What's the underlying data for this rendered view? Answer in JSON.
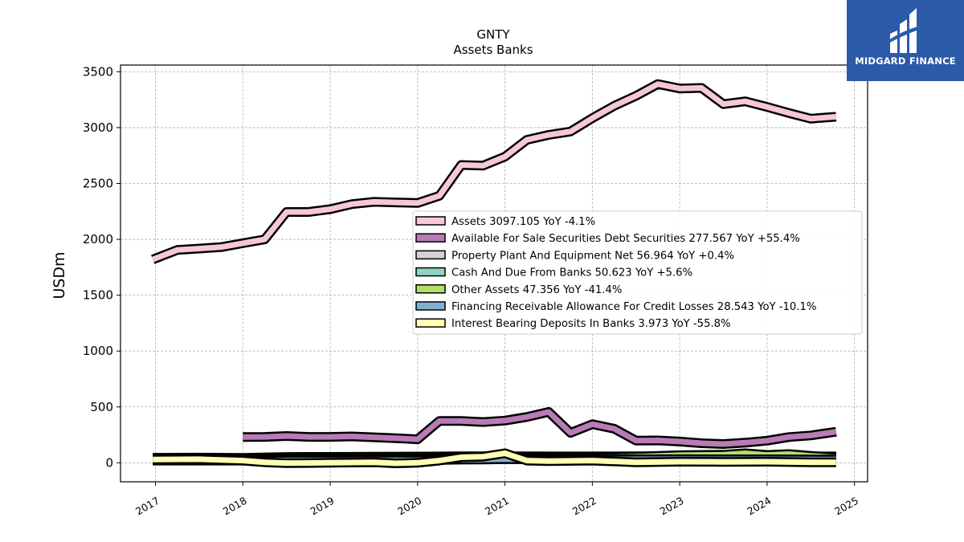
{
  "brand": {
    "name": "MIDGARD FINANCE",
    "bg_color": "#2b5aa8"
  },
  "chart_data": {
    "type": "area",
    "title": "GNTY",
    "subtitle": "Assets Banks",
    "ylabel": "USDm",
    "xlabel": "",
    "ylim": [
      -170,
      3560
    ],
    "xlim": [
      2016.6,
      2025.15
    ],
    "x_ticks": [
      2017,
      2018,
      2019,
      2020,
      2021,
      2022,
      2023,
      2024,
      2025
    ],
    "y_ticks": [
      0,
      500,
      1000,
      1500,
      2000,
      2500,
      3000,
      3500
    ],
    "grid": true,
    "legend_position": "center-right",
    "series": [
      {
        "name": "Assets",
        "legend": "Assets  3097.105 YoY -4.1%",
        "color": "#f6c6dc",
        "points": [
          [
            2016.97,
            1820
          ],
          [
            2017.25,
            1905
          ],
          [
            2017.75,
            1930
          ],
          [
            2018.0,
            1965
          ],
          [
            2018.25,
            2000
          ],
          [
            2018.5,
            2245
          ],
          [
            2018.75,
            2245
          ],
          [
            2019.0,
            2270
          ],
          [
            2019.25,
            2315
          ],
          [
            2019.5,
            2335
          ],
          [
            2019.75,
            2330
          ],
          [
            2020.0,
            2325
          ],
          [
            2020.25,
            2390
          ],
          [
            2020.5,
            2665
          ],
          [
            2020.75,
            2660
          ],
          [
            2021.0,
            2740
          ],
          [
            2021.25,
            2890
          ],
          [
            2021.5,
            2935
          ],
          [
            2021.75,
            2965
          ],
          [
            2022.0,
            3085
          ],
          [
            2022.25,
            3195
          ],
          [
            2022.5,
            3285
          ],
          [
            2022.75,
            3390
          ],
          [
            2023.0,
            3350
          ],
          [
            2023.25,
            3355
          ],
          [
            2023.5,
            3210
          ],
          [
            2023.75,
            3235
          ],
          [
            2024.0,
            3185
          ],
          [
            2024.25,
            3130
          ],
          [
            2024.5,
            3080
          ],
          [
            2024.79,
            3097
          ]
        ]
      },
      {
        "name": "Available For Sale Securities Debt Securities",
        "legend": "Available For Sale Securities Debt Securities  277.567 YoY +55.4%",
        "color": "#b97bb5",
        "points": [
          [
            2018.0,
            230
          ],
          [
            2018.25,
            232
          ],
          [
            2018.5,
            240
          ],
          [
            2018.75,
            232
          ],
          [
            2019.0,
            232
          ],
          [
            2019.25,
            236
          ],
          [
            2019.5,
            228
          ],
          [
            2019.75,
            220
          ],
          [
            2020.0,
            210
          ],
          [
            2020.25,
            375
          ],
          [
            2020.5,
            375
          ],
          [
            2020.75,
            365
          ],
          [
            2021.0,
            378
          ],
          [
            2021.25,
            410
          ],
          [
            2021.5,
            455
          ],
          [
            2021.75,
            268
          ],
          [
            2022.0,
            345
          ],
          [
            2022.25,
            305
          ],
          [
            2022.5,
            198
          ],
          [
            2022.75,
            200
          ],
          [
            2023.0,
            190
          ],
          [
            2023.25,
            175
          ],
          [
            2023.5,
            168
          ],
          [
            2023.75,
            180
          ],
          [
            2024.0,
            198
          ],
          [
            2024.25,
            230
          ],
          [
            2024.5,
            245
          ],
          [
            2024.79,
            278
          ]
        ]
      },
      {
        "name": "Property Plant And Equipment Net",
        "legend": "Property Plant And Equipment Net  56.964 YoY +0.4%",
        "color": "#d3d3d3",
        "points": [
          [
            2016.97,
            45
          ],
          [
            2017.5,
            46
          ],
          [
            2018.0,
            44
          ],
          [
            2018.5,
            52
          ],
          [
            2019.0,
            53
          ],
          [
            2019.5,
            54
          ],
          [
            2020.0,
            56
          ],
          [
            2020.5,
            58
          ],
          [
            2021.0,
            58
          ],
          [
            2021.5,
            57
          ],
          [
            2022.0,
            57
          ],
          [
            2022.5,
            58
          ],
          [
            2023.0,
            57
          ],
          [
            2023.5,
            57
          ],
          [
            2024.0,
            57
          ],
          [
            2024.79,
            57
          ]
        ]
      },
      {
        "name": "Cash And Due From Banks",
        "legend": "Cash And Due From Banks  50.623 YoY +5.6%",
        "color": "#8dd3c7",
        "points": [
          [
            2016.97,
            42
          ],
          [
            2017.5,
            40
          ],
          [
            2018.0,
            38
          ],
          [
            2018.5,
            35
          ],
          [
            2019.0,
            36
          ],
          [
            2019.5,
            38
          ],
          [
            2020.0,
            40
          ],
          [
            2020.5,
            45
          ],
          [
            2021.0,
            48
          ],
          [
            2021.5,
            44
          ],
          [
            2022.0,
            42
          ],
          [
            2022.5,
            46
          ],
          [
            2023.0,
            48
          ],
          [
            2023.5,
            46
          ],
          [
            2024.0,
            48
          ],
          [
            2024.79,
            51
          ]
        ]
      },
      {
        "name": "Other Assets",
        "legend": "Other Assets  47.356 YoY -41.4%",
        "color": "#b3de69",
        "points": [
          [
            2016.97,
            30
          ],
          [
            2017.5,
            30
          ],
          [
            2018.0,
            32
          ],
          [
            2018.5,
            34
          ],
          [
            2019.0,
            33
          ],
          [
            2019.5,
            33
          ],
          [
            2020.0,
            35
          ],
          [
            2020.5,
            38
          ],
          [
            2021.0,
            40
          ],
          [
            2021.5,
            42
          ],
          [
            2022.0,
            45
          ],
          [
            2022.5,
            55
          ],
          [
            2023.0,
            68
          ],
          [
            2023.5,
            72
          ],
          [
            2023.75,
            85
          ],
          [
            2024.0,
            70
          ],
          [
            2024.25,
            78
          ],
          [
            2024.5,
            62
          ],
          [
            2024.79,
            47
          ]
        ]
      },
      {
        "name": "Financing Receivable Allowance For Credit Losses",
        "legend": "Financing Receivable Allowance For Credit Losses  28.543 YoY -10.1%",
        "color": "#80b1d3",
        "points": [
          [
            2016.97,
            20
          ],
          [
            2017.5,
            20
          ],
          [
            2018.0,
            20
          ],
          [
            2018.5,
            21
          ],
          [
            2019.0,
            21
          ],
          [
            2019.5,
            22
          ],
          [
            2020.0,
            22
          ],
          [
            2020.5,
            28
          ],
          [
            2020.75,
            30
          ],
          [
            2021.0,
            32
          ],
          [
            2021.5,
            31
          ],
          [
            2022.0,
            30
          ],
          [
            2022.5,
            31
          ],
          [
            2023.0,
            32
          ],
          [
            2023.5,
            31
          ],
          [
            2024.0,
            31
          ],
          [
            2024.79,
            29
          ]
        ]
      },
      {
        "name": "Interest Bearing Deposits In Banks",
        "legend": "Interest Bearing Deposits In Banks  3.973 YoY -55.8%",
        "color": "#ffffb3",
        "points": [
          [
            2016.97,
            30
          ],
          [
            2017.5,
            32
          ],
          [
            2018.0,
            20
          ],
          [
            2018.25,
            5
          ],
          [
            2018.5,
            -3
          ],
          [
            2019.0,
            0
          ],
          [
            2019.5,
            5
          ],
          [
            2019.75,
            -5
          ],
          [
            2020.0,
            0
          ],
          [
            2020.25,
            20
          ],
          [
            2020.5,
            50
          ],
          [
            2020.75,
            55
          ],
          [
            2021.0,
            85
          ],
          [
            2021.25,
            20
          ],
          [
            2021.5,
            15
          ],
          [
            2022.0,
            20
          ],
          [
            2022.5,
            5
          ],
          [
            2023.0,
            10
          ],
          [
            2023.5,
            8
          ],
          [
            2024.0,
            10
          ],
          [
            2024.5,
            5
          ],
          [
            2024.79,
            4
          ]
        ]
      }
    ]
  }
}
